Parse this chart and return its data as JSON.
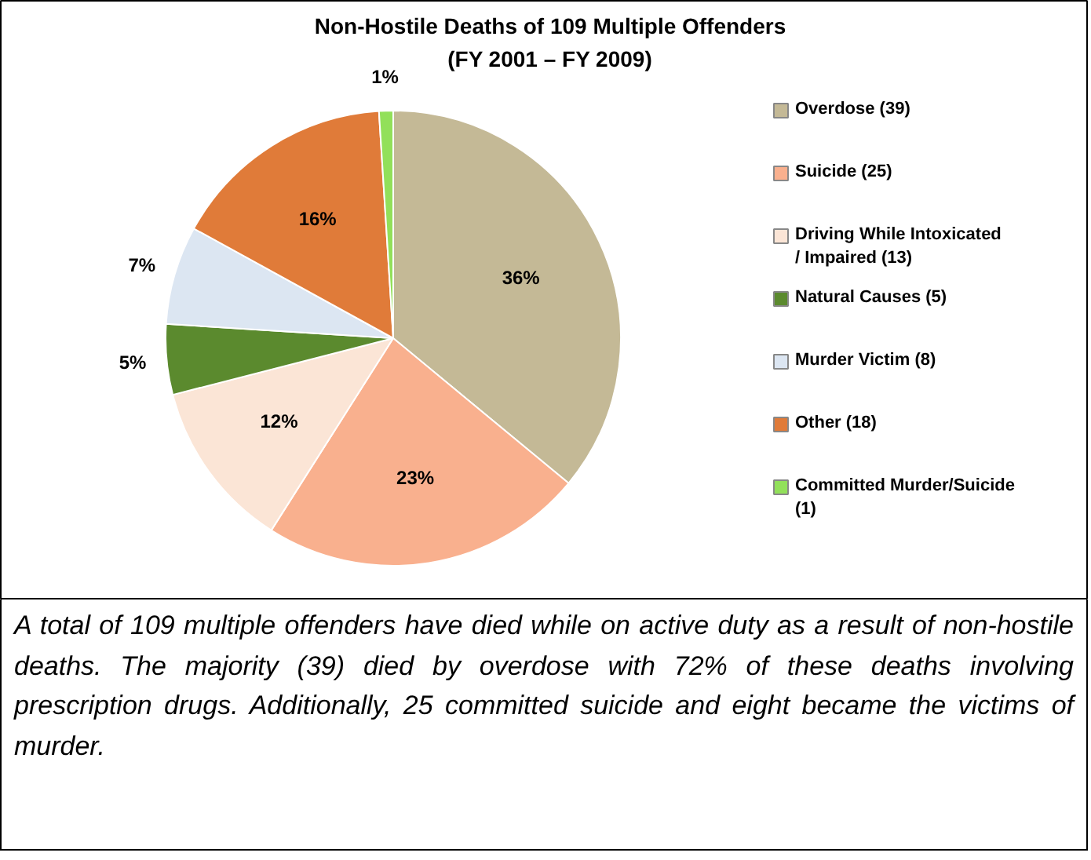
{
  "chart_data": {
    "type": "pie",
    "title": "Non-Hostile Deaths of 109 Multiple Offenders\n(FY 2001 – FY 2009)",
    "categories": [
      "Overdose (39)",
      "Suicide (25)",
      "Driving While Intoxicated / Impaired (13)",
      "Natural Causes (5)",
      "Murder Victim (8)",
      "Other (18)",
      "Committed Murder/Suicide (1)"
    ],
    "values": [
      36,
      23,
      12,
      5,
      7,
      16,
      1
    ],
    "value_labels": [
      "36%",
      "23%",
      "12%",
      "5%",
      "7%",
      "16%",
      "1%"
    ],
    "colors": [
      "#c4b996",
      "#f9b08e",
      "#fbe5d6",
      "#5b8a2e",
      "#dce6f2",
      "#e07b39",
      "#92e05a"
    ],
    "legend": "right",
    "annotations": [
      "A total of 109 multiple offenders have died while on active duty as a result of non-hostile deaths.  The majority (39) died by overdose with 72% of these deaths involving prescription drugs.  Additionally, 25 committed suicide and eight became the victims of murder."
    ]
  }
}
